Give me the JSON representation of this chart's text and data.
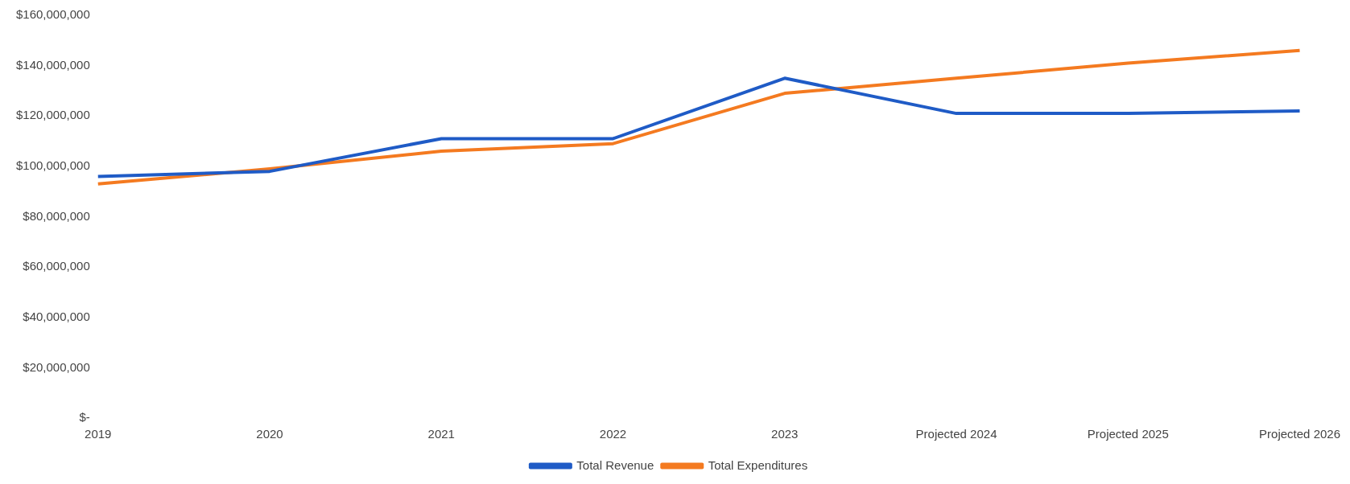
{
  "chart_data": {
    "type": "line",
    "categories": [
      "2019",
      "2020",
      "2021",
      "2022",
      "2023",
      "Projected 2024",
      "Projected 2025",
      "Projected 2026"
    ],
    "series": [
      {
        "name": "Total Revenue",
        "color": "#1f5bc6",
        "values": [
          96000000,
          98000000,
          111000000,
          111000000,
          135000000,
          121000000,
          121000000,
          122000000
        ]
      },
      {
        "name": "Total Expenditures",
        "color": "#f47a20",
        "values": [
          93000000,
          99000000,
          106000000,
          109000000,
          129000000,
          135000000,
          141000000,
          146000000
        ]
      }
    ],
    "ylim": [
      0,
      160000000
    ],
    "yticks": [
      {
        "value": 0,
        "label": "$-"
      },
      {
        "value": 20000000,
        "label": "$20,000,000"
      },
      {
        "value": 40000000,
        "label": "$40,000,000"
      },
      {
        "value": 60000000,
        "label": "$60,000,000"
      },
      {
        "value": 80000000,
        "label": "$80,000,000"
      },
      {
        "value": 100000000,
        "label": "$100,000,000"
      },
      {
        "value": 120000000,
        "label": "$120,000,000"
      },
      {
        "value": 140000000,
        "label": "$140,000,000"
      },
      {
        "value": 160000000,
        "label": "$160,000,000"
      }
    ],
    "grid": false,
    "legend": "bottom",
    "marker": "none",
    "line_style": "solid"
  }
}
